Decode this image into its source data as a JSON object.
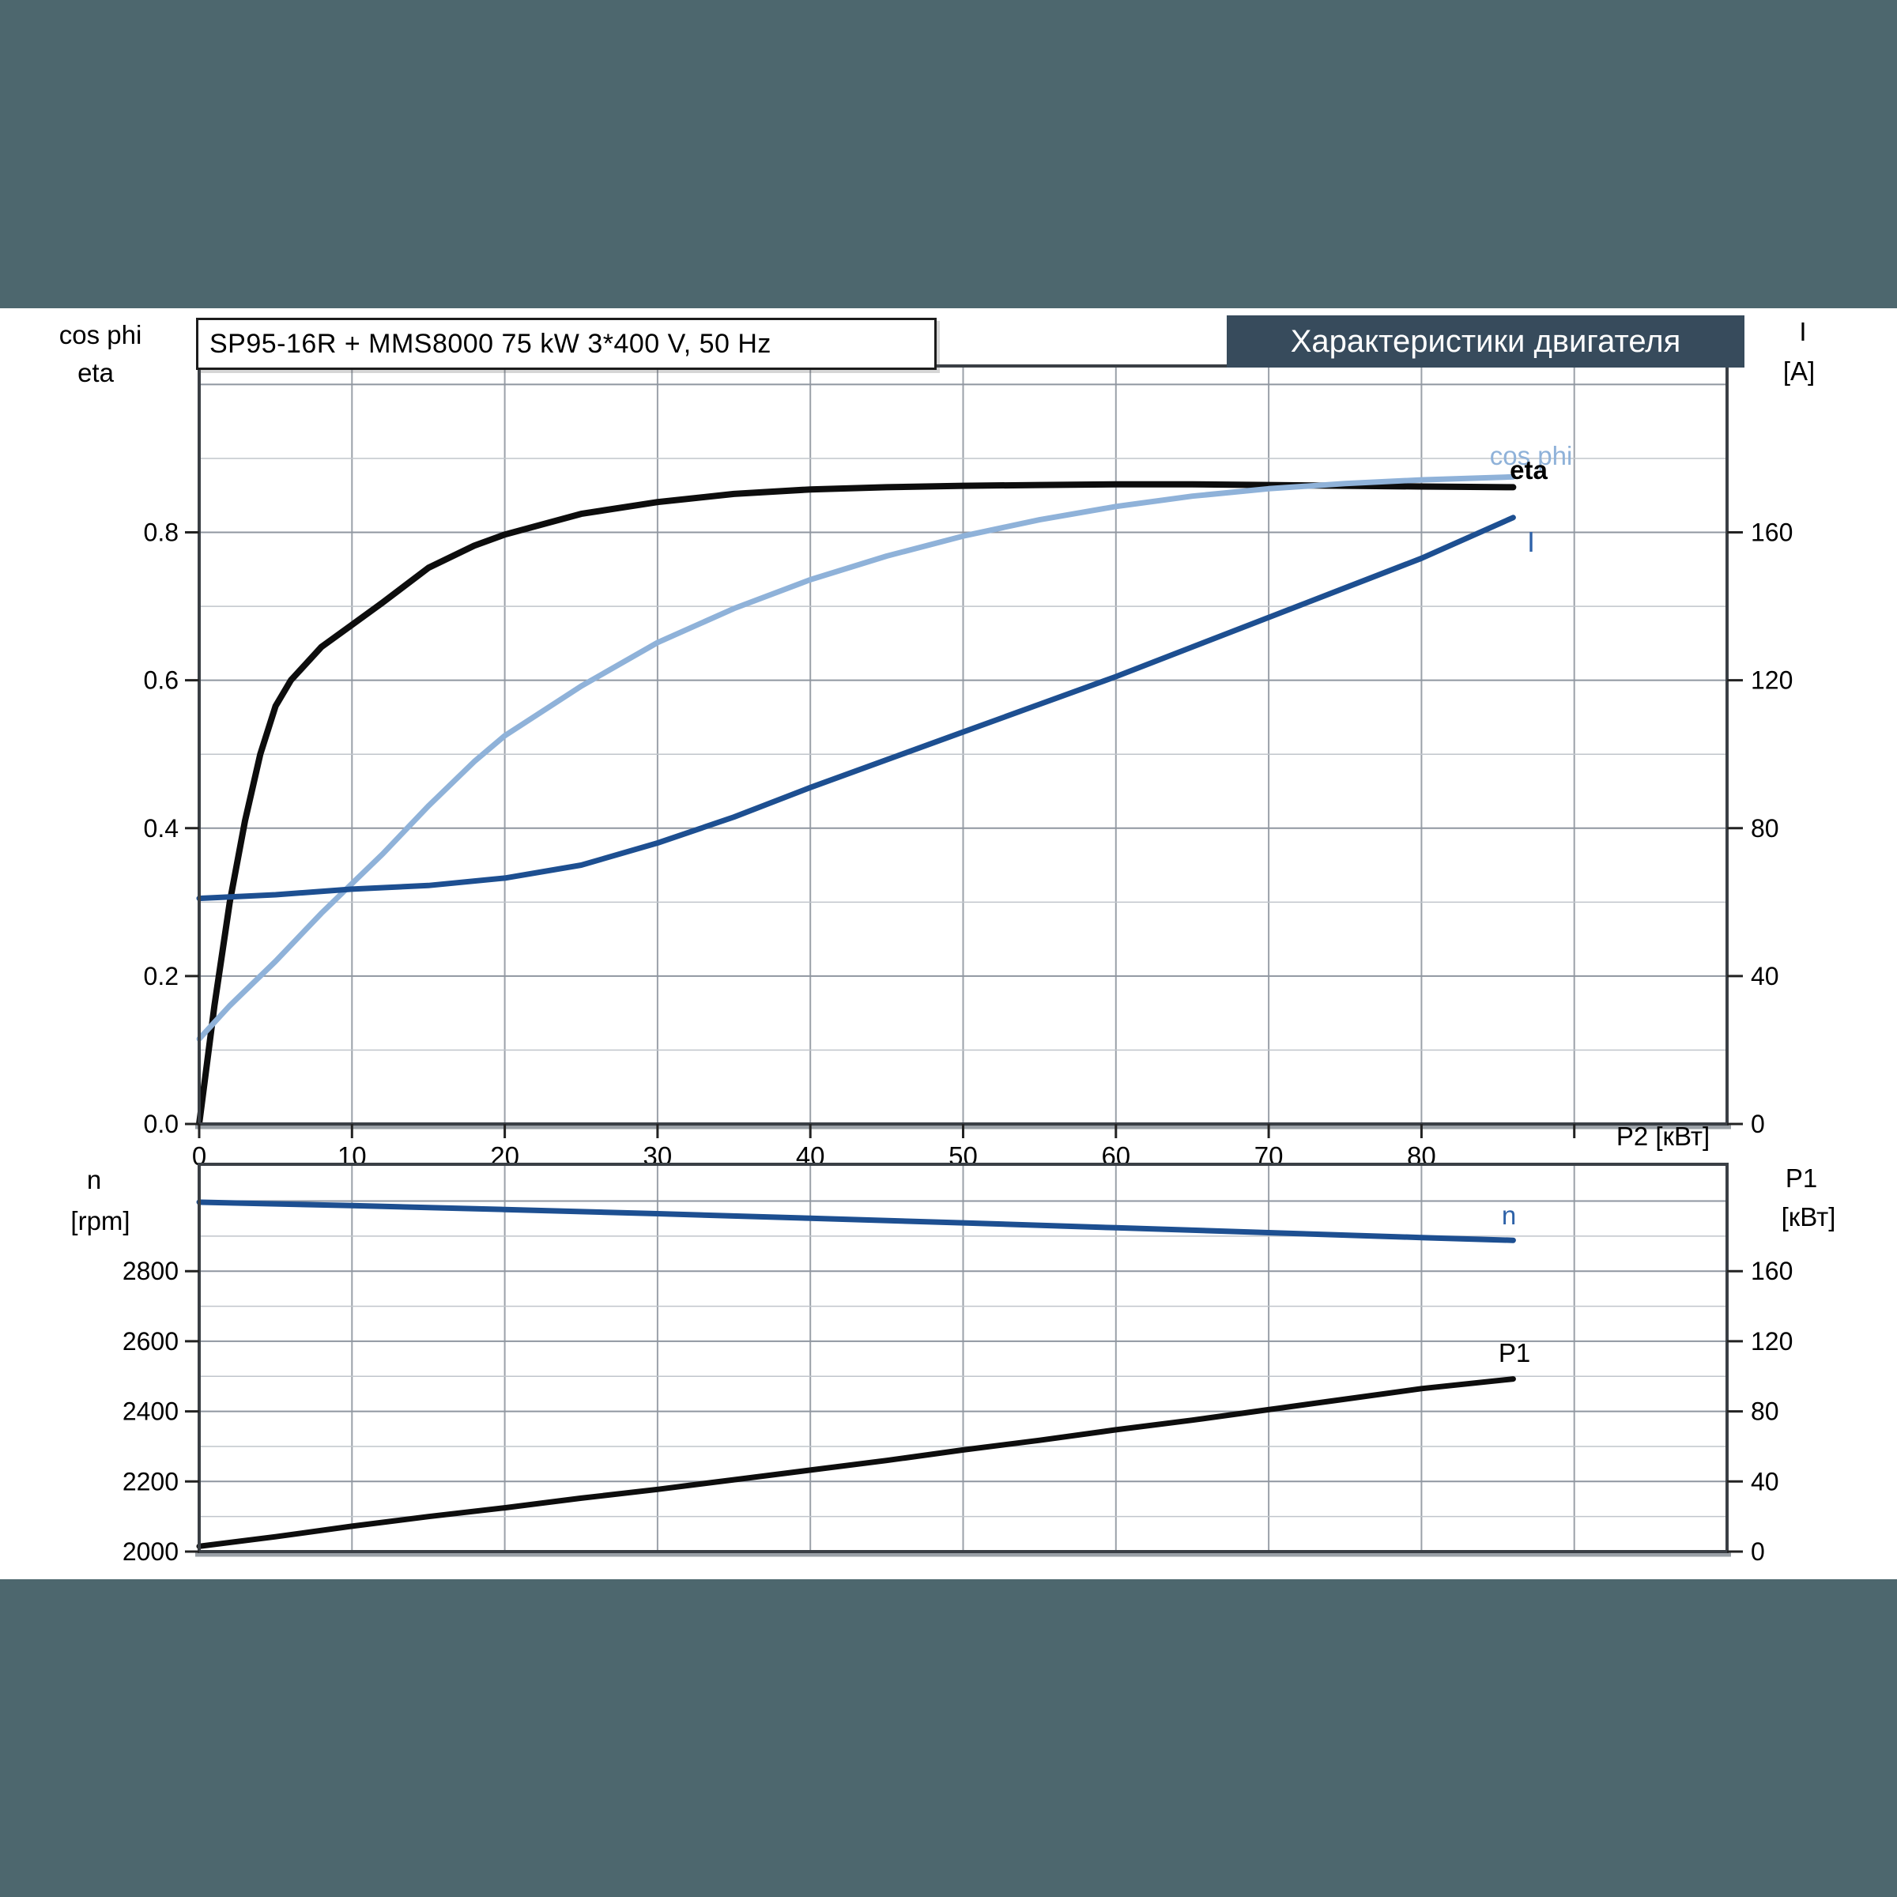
{
  "window": {
    "background": "#4d676e",
    "content_background": "#ffffff"
  },
  "title_box": {
    "text": "SP95-16R + MMS8000   75 kW   3*400 V, 50 Hz"
  },
  "banner": {
    "text": "Характеристики двигателя",
    "background": "#374b5c",
    "color": "#ffffff"
  },
  "axis_headers": {
    "top_left_1": "cos phi",
    "top_left_2": "eta",
    "top_right_1": "I",
    "top_right_2": "[A]",
    "bottom_left_1": "n",
    "bottom_left_2": "[rpm]",
    "bottom_right_1": "P1",
    "bottom_right_2": "[кВт]",
    "x_label": "P2 [кВт]"
  },
  "curve_labels": {
    "cos_phi": "cos phi",
    "eta": "eta",
    "current": "I",
    "speed": "n",
    "power": "P1"
  },
  "chart_data": [
    {
      "type": "line",
      "title": "SP95-16R + MMS8000 75 kW 3*400 V, 50 Hz",
      "xlabel": "P2 [кВт]",
      "x_axis": {
        "min": 0,
        "max": 100,
        "grid_step": 10,
        "ticks": [
          0,
          10,
          20,
          30,
          40,
          50,
          60,
          70,
          80
        ],
        "extra_ticks": [
          90
        ]
      },
      "y_left": {
        "name": "cos phi / eta",
        "min": 0,
        "max": 1.025,
        "grid_step": 0.1,
        "ticks": [
          "0.0",
          "0.2",
          "0.4",
          "0.6",
          "0.8"
        ],
        "tick_values": [
          0,
          0.2,
          0.4,
          0.6,
          0.8
        ]
      },
      "y_right": {
        "name": "I [A]",
        "min": 0,
        "max": 205,
        "grid_step": 20,
        "ticks": [
          "0",
          "40",
          "80",
          "120",
          "160"
        ],
        "tick_values": [
          0,
          40,
          80,
          120,
          160
        ]
      },
      "legend_position": "inline-right",
      "grid": true,
      "series": [
        {
          "name": "eta",
          "axis": "left",
          "color": "#0d0d0d",
          "width": 8,
          "x": [
            0,
            1,
            2,
            3,
            4,
            5,
            6,
            8,
            10,
            12,
            15,
            18,
            20,
            25,
            30,
            35,
            40,
            45,
            50,
            55,
            60,
            65,
            70,
            75,
            80,
            86
          ],
          "y": [
            0,
            0.16,
            0.3,
            0.41,
            0.5,
            0.565,
            0.6,
            0.645,
            0.675,
            0.705,
            0.752,
            0.782,
            0.797,
            0.825,
            0.841,
            0.852,
            0.858,
            0.861,
            0.863,
            0.864,
            0.865,
            0.865,
            0.864,
            0.863,
            0.862,
            0.861
          ]
        },
        {
          "name": "cos phi",
          "axis": "left",
          "color": "#8fb2d9",
          "width": 7,
          "x": [
            0,
            2,
            5,
            8,
            10,
            12,
            15,
            18,
            20,
            25,
            30,
            35,
            40,
            45,
            50,
            55,
            60,
            65,
            70,
            75,
            80,
            86
          ],
          "y": [
            0.115,
            0.16,
            0.22,
            0.285,
            0.325,
            0.365,
            0.43,
            0.49,
            0.525,
            0.592,
            0.651,
            0.697,
            0.736,
            0.768,
            0.795,
            0.817,
            0.835,
            0.849,
            0.859,
            0.866,
            0.871,
            0.875
          ]
        },
        {
          "name": "I",
          "axis": "right",
          "color": "#1d4f91",
          "width": 7,
          "x": [
            0,
            5,
            10,
            15,
            20,
            25,
            30,
            35,
            40,
            45,
            50,
            55,
            60,
            65,
            70,
            75,
            80,
            86
          ],
          "y": [
            61,
            62,
            63.5,
            64.5,
            66.5,
            70,
            76,
            83,
            91,
            98.5,
            106,
            113.5,
            121,
            129,
            137,
            145,
            153,
            164
          ]
        }
      ]
    },
    {
      "type": "line",
      "title": "",
      "xlabel": "",
      "x_axis": {
        "min": 0,
        "max": 100,
        "grid_step": 10,
        "ticks": [],
        "extra_ticks": []
      },
      "y_left": {
        "name": "n [rpm]",
        "min": 2000,
        "max": 3105,
        "grid_step": 100,
        "ticks": [
          "2000",
          "2200",
          "2400",
          "2600",
          "2800"
        ],
        "tick_values": [
          2000,
          2200,
          2400,
          2600,
          2800
        ]
      },
      "y_right": {
        "name": "P1 [кВт]",
        "min": 0,
        "max": 221,
        "grid_step": 20,
        "ticks": [
          "0",
          "40",
          "80",
          "120",
          "160"
        ],
        "tick_values": [
          0,
          40,
          80,
          120,
          160
        ]
      },
      "legend_position": "inline-right",
      "grid": true,
      "series": [
        {
          "name": "n",
          "axis": "left",
          "color": "#1d4f91",
          "width": 7,
          "x": [
            0,
            10,
            20,
            30,
            40,
            50,
            60,
            70,
            80,
            86
          ],
          "y": [
            2997,
            2987,
            2976,
            2964,
            2951,
            2938,
            2924,
            2910,
            2896,
            2888
          ]
        },
        {
          "name": "P1",
          "axis": "right",
          "color": "#0d0d0d",
          "width": 7,
          "x": [
            0,
            5,
            10,
            15,
            20,
            25,
            30,
            35,
            40,
            45,
            50,
            55,
            60,
            65,
            70,
            75,
            80,
            86
          ],
          "y": [
            3,
            8.5,
            14.5,
            20,
            25,
            30.5,
            35.5,
            41,
            46.5,
            52,
            58,
            63.5,
            69.5,
            75,
            81,
            87,
            93,
            98.5
          ]
        }
      ]
    }
  ]
}
